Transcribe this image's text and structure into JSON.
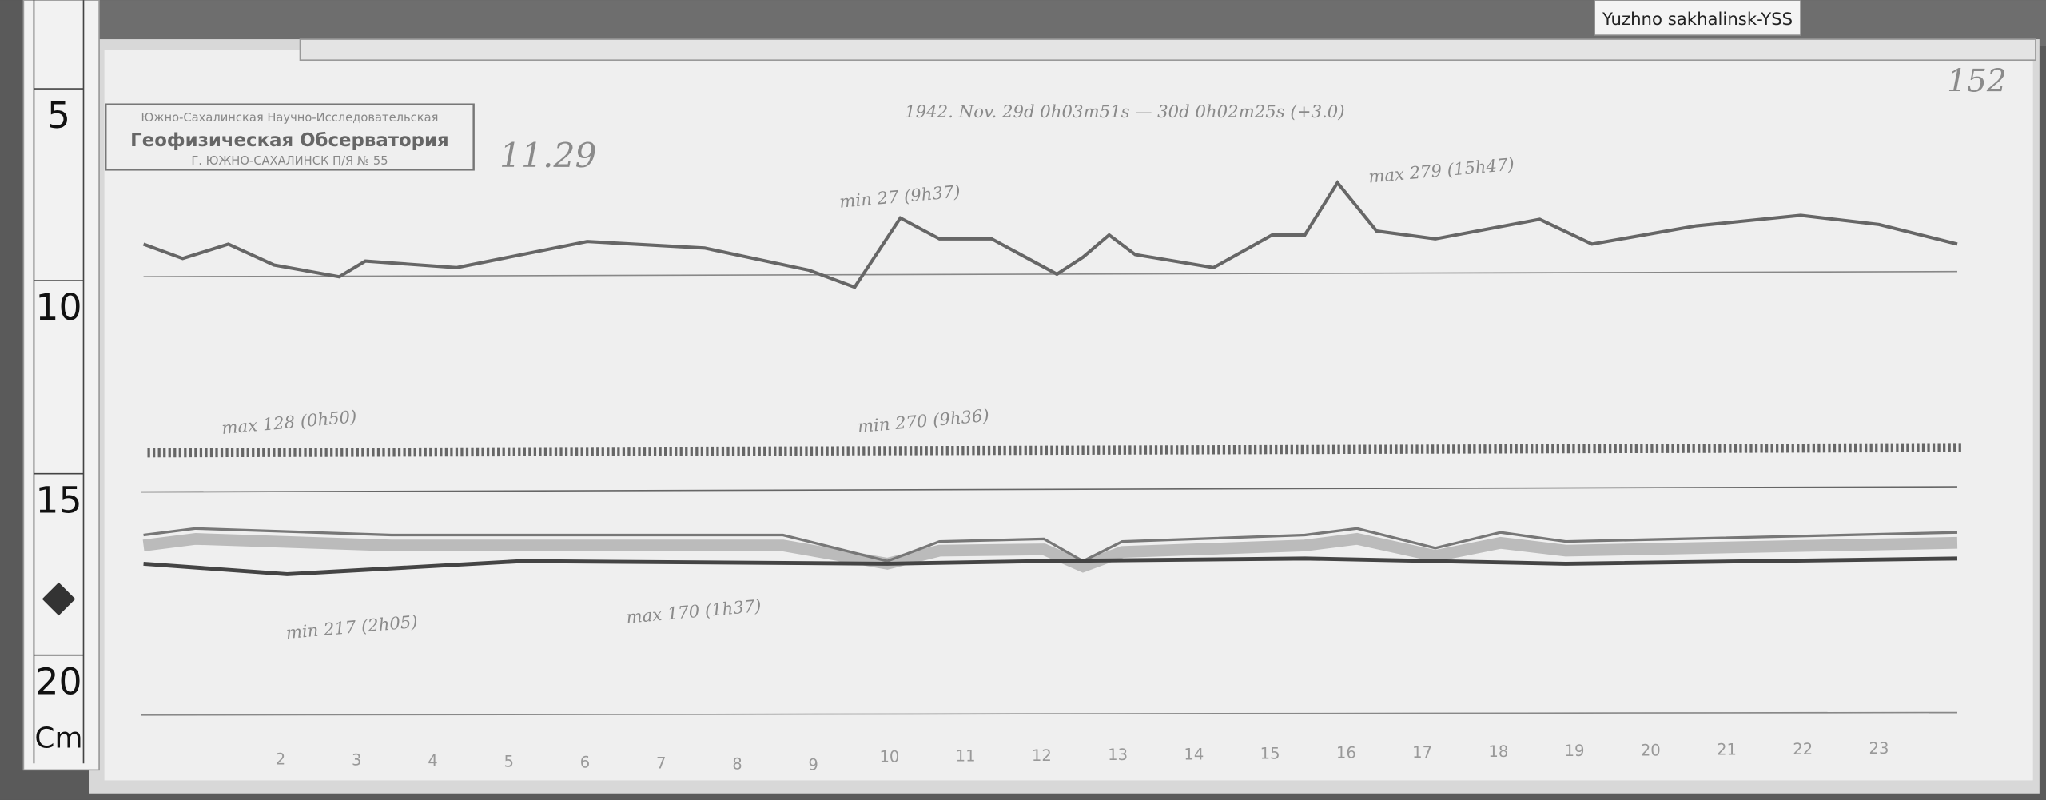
{
  "tag": "Yuzhno sakhalinsk-YSS",
  "page_number": "152",
  "stamp": {
    "line1": "Южно-Сахалинская Научно-Исследовательская",
    "line2": "Геофизическая Обсерватория",
    "line3": "Г. ЮЖНО-САХАЛИНСК П/Я № 55"
  },
  "date_note": "11.29",
  "header": "1942. Nov. 29d 0h03m51s — 30d 0h02m25s (+3.0)",
  "ruler": {
    "marks": [
      "5",
      "10",
      "15",
      "20"
    ],
    "unit": "Cm"
  },
  "annotations": [
    "min 27 (9h37)",
    "max 279 (15h47)",
    "max 128 (0h50)",
    "min 270 (9h36)",
    "min 217 (2h05)",
    "max 170 (1h37)"
  ],
  "hours": [
    "2",
    "3",
    "4",
    "5",
    "6",
    "7",
    "8",
    "9",
    "10",
    "11",
    "12",
    "13",
    "14",
    "15",
    "16",
    "17",
    "18",
    "19",
    "20",
    "21",
    "22",
    "23"
  ]
}
